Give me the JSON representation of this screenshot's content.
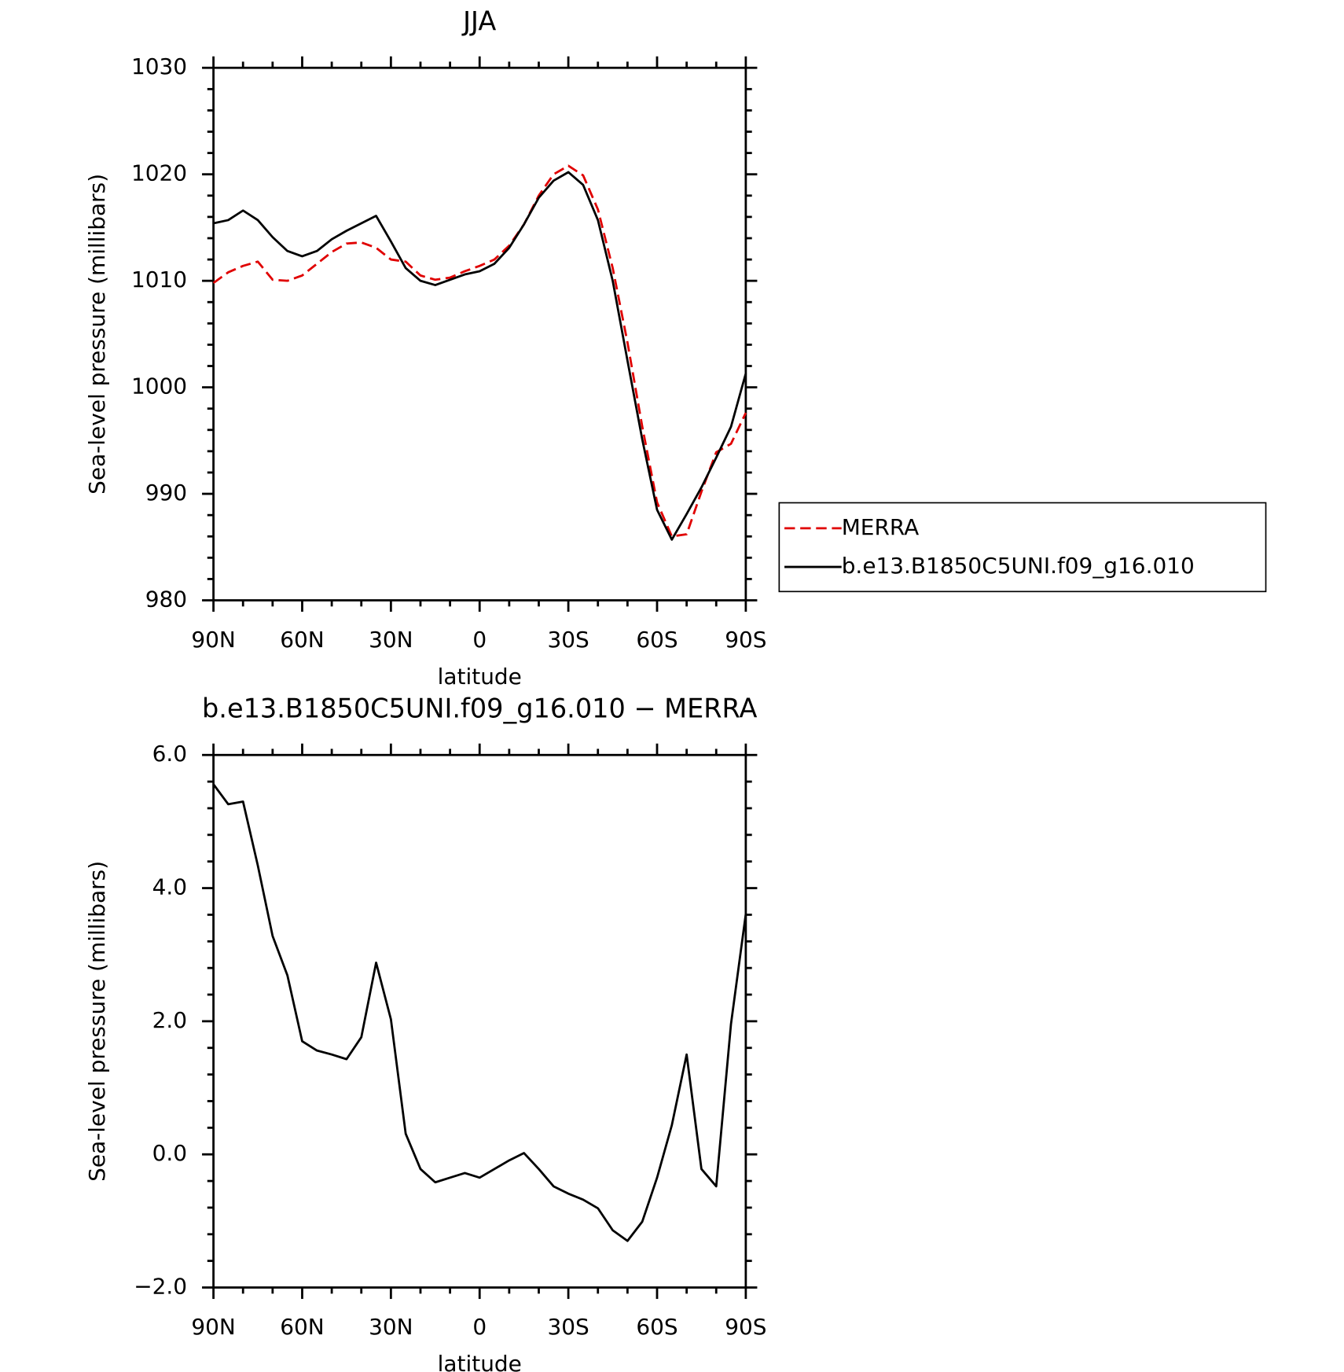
{
  "chart_data": [
    {
      "type": "line",
      "title": "JJA",
      "xlabel": "latitude",
      "ylabel": "Sea-level pressure (millibars)",
      "x": [
        90,
        85,
        80,
        75,
        70,
        65,
        60,
        55,
        50,
        45,
        40,
        35,
        30,
        25,
        20,
        15,
        10,
        5,
        0,
        -5,
        -10,
        -15,
        -20,
        -25,
        -30,
        -35,
        -40,
        -45,
        -50,
        -55,
        -60,
        -65,
        -70,
        -75,
        -80,
        -85,
        -90
      ],
      "series": [
        {
          "name": "MERRA",
          "color": "#e00000",
          "dash": true,
          "values": [
            1009.8,
            1010.8,
            1011.4,
            1011.8,
            1010.1,
            1010.0,
            1010.5,
            1011.6,
            1012.7,
            1013.5,
            1013.6,
            1013.1,
            1012.0,
            1011.8,
            1010.5,
            1010.1,
            1010.3,
            1010.9,
            1011.4,
            1012.0,
            1013.3,
            1015.3,
            1018.0,
            1020.0,
            1020.8,
            1019.9,
            1016.7,
            1011.2,
            1004.2,
            996.3,
            989.2,
            986.0,
            986.2,
            990.2,
            993.9,
            994.7,
            997.6
          ]
        },
        {
          "name": "b.e13.B1850C5UNI.f09_g16.010",
          "color": "#000000",
          "dash": false,
          "values": [
            1015.4,
            1015.7,
            1016.6,
            1015.7,
            1014.1,
            1012.8,
            1012.3,
            1012.8,
            1013.9,
            1014.7,
            1015.4,
            1016.1,
            1013.7,
            1011.2,
            1010.0,
            1009.6,
            1010.1,
            1010.6,
            1010.9,
            1011.6,
            1013.1,
            1015.3,
            1017.8,
            1019.4,
            1020.2,
            1019.0,
            1015.7,
            1010.0,
            1002.5,
            995.1,
            988.5,
            985.7,
            988.1,
            990.6,
            993.4,
            996.3,
            1001.3
          ]
        }
      ],
      "xlim": [
        90,
        -90
      ],
      "xticks": [
        {
          "value": 90,
          "label": "90N"
        },
        {
          "value": 60,
          "label": "60N"
        },
        {
          "value": 30,
          "label": "30N"
        },
        0,
        {
          "value": -30,
          "label": "30S"
        },
        {
          "value": -60,
          "label": "60S"
        },
        {
          "value": -90,
          "label": "90S"
        }
      ],
      "ylim": [
        980,
        1030
      ],
      "yticks": [
        980,
        990,
        1000,
        1010,
        1020,
        1030
      ],
      "legend": "right"
    },
    {
      "type": "line",
      "title": "b.e13.B1850C5UNI.f09_g16.010 − MERRA",
      "xlabel": "latitude",
      "ylabel": "Sea-level pressure (millibars)",
      "x": [
        90,
        85,
        80,
        75,
        70,
        65,
        60,
        55,
        50,
        45,
        40,
        35,
        30,
        25,
        20,
        15,
        10,
        5,
        0,
        -5,
        -10,
        -15,
        -20,
        -25,
        -30,
        -35,
        -40,
        -45,
        -50,
        -55,
        -60,
        -65,
        -70,
        -75,
        -80,
        -85,
        -90
      ],
      "series": [
        {
          "color": "#000000",
          "dash": false,
          "values": [
            5.56,
            5.26,
            5.3,
            4.34,
            3.28,
            2.69,
            1.7,
            1.56,
            1.5,
            1.43,
            1.76,
            2.88,
            2.03,
            0.31,
            -0.22,
            -0.42,
            -0.35,
            -0.28,
            -0.35,
            -0.22,
            -0.09,
            0.02,
            -0.22,
            -0.48,
            -0.59,
            -0.68,
            -0.81,
            -1.14,
            -1.3,
            -1.01,
            -0.35,
            0.44,
            1.5,
            -0.22,
            -0.48,
            1.96,
            3.61
          ]
        }
      ],
      "xlim": [
        90,
        -90
      ],
      "xticks": [
        {
          "value": 90,
          "label": "90N"
        },
        {
          "value": 60,
          "label": "60N"
        },
        {
          "value": 30,
          "label": "30N"
        },
        0,
        {
          "value": -30,
          "label": "30S"
        },
        {
          "value": -60,
          "label": "60S"
        },
        {
          "value": -90,
          "label": "90S"
        }
      ],
      "ylim": [
        -2,
        6
      ],
      "yticks": [
        {
          "value": -2,
          "label": "−2.0"
        },
        {
          "value": 0,
          "label": "0.0"
        },
        {
          "value": 2,
          "label": "2.0"
        },
        {
          "value": 4,
          "label": "4.0"
        },
        {
          "value": 6,
          "label": "6.0"
        }
      ]
    }
  ]
}
